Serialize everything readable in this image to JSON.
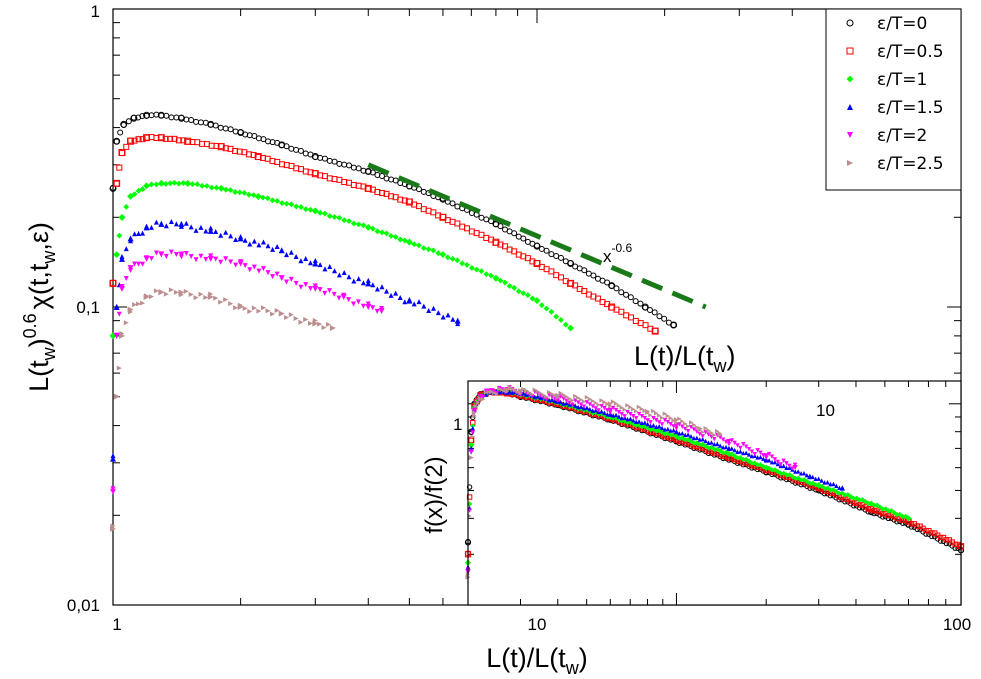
{
  "chart_data": [
    {
      "type": "scatter",
      "scale": "log-log",
      "xlabel": "L(t)/L(t_w)",
      "ylabel": "L(t_w)^0.6 χ(t,t_w,ε)",
      "xlabel_parts": {
        "main": "L(t)/L(t",
        "sub": "w",
        "close": ")"
      },
      "ylabel_parts": {
        "a": "L(t",
        "sub1": "w",
        "b": ")",
        "sup": "0.6",
        "c": "χ(t,t",
        "sub2": "w",
        "d": ",ε)"
      },
      "secondary_xlabel_parts": {
        "main": "L(t)/L(t",
        "sub": "w",
        "close": ")"
      },
      "xlim": [
        1,
        100
      ],
      "ylim": [
        0.01,
        1
      ],
      "x_ticks": [
        1,
        10,
        100
      ],
      "x_tick_labels": [
        "1",
        "10",
        "100"
      ],
      "y_ticks": [
        0.01,
        0.1,
        1
      ],
      "y_tick_labels": [
        "0,01",
        "0,1",
        "1"
      ],
      "legend_position": "top-right",
      "series": [
        {
          "name": "ε/T=0",
          "color": "#000000",
          "marker": "circle",
          "x": [
            1.0,
            1.02,
            1.06,
            1.12,
            1.2,
            1.3,
            1.45,
            1.7,
            2.0,
            2.5,
            3.0,
            4.0,
            5.0,
            6.0,
            8.0,
            10.0,
            12.0,
            15.0,
            18.0,
            21.0
          ],
          "y": [
            0.25,
            0.36,
            0.41,
            0.43,
            0.44,
            0.44,
            0.43,
            0.41,
            0.385,
            0.35,
            0.32,
            0.285,
            0.255,
            0.23,
            0.19,
            0.16,
            0.14,
            0.118,
            0.1,
            0.087
          ]
        },
        {
          "name": "ε/T=0.5",
          "color": "#ff0000",
          "marker": "square",
          "x": [
            1.0,
            1.02,
            1.05,
            1.1,
            1.2,
            1.3,
            1.5,
            1.8,
            2.2,
            3.0,
            4.0,
            5.0,
            6.0,
            8.0,
            10.0,
            12.0,
            15.0,
            19.0
          ],
          "y": [
            0.12,
            0.26,
            0.33,
            0.36,
            0.37,
            0.37,
            0.36,
            0.345,
            0.32,
            0.28,
            0.25,
            0.225,
            0.2,
            0.165,
            0.14,
            0.12,
            0.1,
            0.083
          ]
        },
        {
          "name": "ε/T=1",
          "color": "#00ff00",
          "marker": "diamond",
          "x": [
            1.0,
            1.02,
            1.05,
            1.1,
            1.2,
            1.3,
            1.5,
            1.8,
            2.2,
            3.0,
            4.0,
            5.0,
            6.0,
            8.0,
            10.0,
            12.0
          ],
          "y": [
            0.08,
            0.15,
            0.2,
            0.235,
            0.255,
            0.26,
            0.26,
            0.25,
            0.235,
            0.21,
            0.185,
            0.165,
            0.15,
            0.125,
            0.105,
            0.085
          ]
        },
        {
          "name": "ε/T=1.5",
          "color": "#0000ff",
          "marker": "triangle-up",
          "x": [
            1.0,
            1.02,
            1.05,
            1.1,
            1.2,
            1.3,
            1.45,
            1.7,
            2.0,
            2.5,
            3.0,
            4.0,
            5.0,
            6.5
          ],
          "y": [
            0.031,
            0.1,
            0.145,
            0.17,
            0.185,
            0.19,
            0.19,
            0.18,
            0.17,
            0.155,
            0.14,
            0.12,
            0.105,
            0.09
          ]
        },
        {
          "name": "ε/T=2",
          "color": "#ff00ff",
          "marker": "triangle-down",
          "x": [
            1.0,
            1.02,
            1.05,
            1.1,
            1.2,
            1.3,
            1.45,
            1.7,
            2.0,
            2.5,
            3.0,
            3.5,
            4.0,
            4.3
          ],
          "y": [
            0.024,
            0.08,
            0.115,
            0.135,
            0.145,
            0.15,
            0.15,
            0.145,
            0.14,
            0.125,
            0.115,
            0.108,
            0.1,
            0.097
          ]
        },
        {
          "name": "ε/T=2.5",
          "color": "#bc8f8f",
          "marker": "triangle-right",
          "x": [
            1.0,
            1.02,
            1.05,
            1.1,
            1.2,
            1.3,
            1.45,
            1.7,
            2.0,
            2.5,
            3.0,
            3.3
          ],
          "y": [
            0.018,
            0.05,
            0.08,
            0.098,
            0.108,
            0.112,
            0.112,
            0.108,
            0.1,
            0.095,
            0.088,
            0.085
          ]
        }
      ],
      "reference_line": {
        "label_base": "x",
        "label_exp": "-0.6",
        "exponent": -0.6,
        "x": [
          4.0,
          25.0
        ],
        "y": [
          0.3,
          0.1
        ],
        "color": "#1a7a1a"
      }
    },
    {
      "type": "scatter",
      "scale": "log-log",
      "position": "inset-bottom-right",
      "ylabel": "f(x)/f(2)",
      "xlabel": "",
      "x_tick_labels": [
        "10"
      ],
      "y_tick_labels": [
        "1"
      ],
      "xlim": [
        2,
        90
      ],
      "ylim": [
        0.2,
        1.2
      ],
      "x_ticks": [
        10
      ],
      "y_ticks": [
        1
      ],
      "series": [
        {
          "name": "ε/T=0",
          "color": "#000000",
          "marker": "circle",
          "x": [
            2.0,
            2.05,
            2.1,
            2.2,
            2.4,
            2.7,
            3.0,
            4.0,
            6.0,
            10.0,
            15.0,
            20.0,
            30.0,
            45.0,
            60.0,
            90.0
          ],
          "y": [
            0.33,
            0.8,
            1.0,
            1.08,
            1.1,
            1.09,
            1.06,
            0.99,
            0.88,
            0.74,
            0.64,
            0.58,
            0.5,
            0.42,
            0.38,
            0.31
          ]
        },
        {
          "name": "ε/T=0.5",
          "color": "#ff0000",
          "marker": "square",
          "x": [
            2.0,
            2.05,
            2.1,
            2.2,
            2.4,
            2.7,
            3.0,
            4.0,
            6.0,
            10.0,
            15.0,
            20.0,
            30.0,
            45.0,
            60.0,
            90.0
          ],
          "y": [
            0.3,
            0.75,
            0.98,
            1.07,
            1.1,
            1.09,
            1.07,
            1.0,
            0.89,
            0.75,
            0.65,
            0.59,
            0.51,
            0.43,
            0.39,
            0.32
          ]
        },
        {
          "name": "ε/T=1",
          "color": "#00ff00",
          "marker": "diamond",
          "x": [
            2.0,
            2.05,
            2.1,
            2.2,
            2.4,
            2.7,
            3.0,
            4.0,
            6.0,
            10.0,
            15.0,
            20.0,
            30.0,
            45.0,
            60.0
          ],
          "y": [
            0.28,
            0.72,
            0.97,
            1.06,
            1.1,
            1.1,
            1.08,
            1.01,
            0.9,
            0.77,
            0.67,
            0.6,
            0.52,
            0.45,
            0.4
          ]
        },
        {
          "name": "ε/T=1.5",
          "color": "#0000ff",
          "marker": "triangle-up",
          "x": [
            2.0,
            2.05,
            2.1,
            2.2,
            2.4,
            2.7,
            3.0,
            4.0,
            6.0,
            10.0,
            15.0,
            20.0,
            28.0,
            36.0
          ],
          "y": [
            0.27,
            0.7,
            0.96,
            1.06,
            1.1,
            1.1,
            1.09,
            1.02,
            0.92,
            0.8,
            0.7,
            0.64,
            0.56,
            0.51
          ]
        },
        {
          "name": "ε/T=2",
          "color": "#ff00ff",
          "marker": "triangle-down",
          "x": [
            2.0,
            2.05,
            2.1,
            2.2,
            2.4,
            2.7,
            3.0,
            4.0,
            6.0,
            10.0,
            15.0,
            20.0,
            25.0
          ],
          "y": [
            0.26,
            0.68,
            0.95,
            1.06,
            1.11,
            1.12,
            1.1,
            1.04,
            0.95,
            0.84,
            0.74,
            0.66,
            0.6
          ]
        },
        {
          "name": "ε/T=2.5",
          "color": "#bc8f8f",
          "marker": "triangle-right",
          "x": [
            2.0,
            2.05,
            2.1,
            2.2,
            2.4,
            2.7,
            3.0,
            4.0,
            6.0,
            8.0,
            10.0,
            12.0,
            14.0
          ],
          "y": [
            0.25,
            0.65,
            0.93,
            1.04,
            1.1,
            1.12,
            1.11,
            1.07,
            1.0,
            0.94,
            0.88,
            0.82,
            0.78
          ]
        }
      ]
    }
  ]
}
